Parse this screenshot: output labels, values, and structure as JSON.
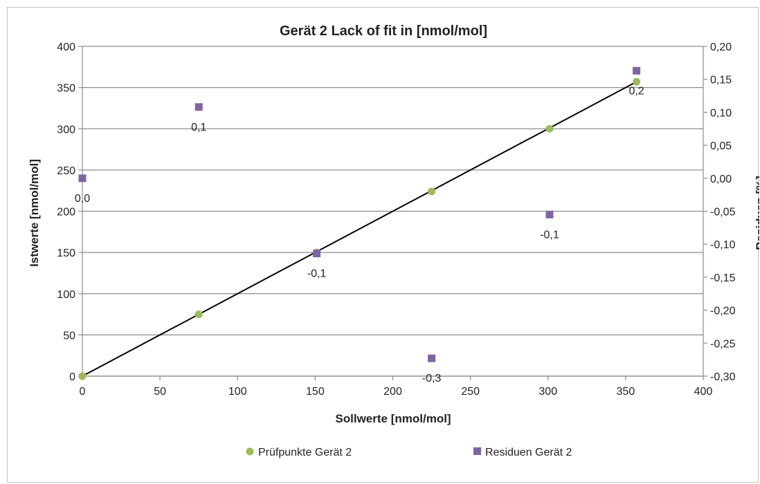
{
  "chart_data": {
    "type": "scatter",
    "title": "Gerät 2  Lack of fit in [nmol/mol]",
    "xlabel": "Sollwerte [nmol/mol]",
    "ylabel": "Istwerte [nmol/mol]",
    "y2label": "Residuen [%]",
    "xlim": [
      0,
      400
    ],
    "ylim": [
      0,
      400
    ],
    "y2lim": [
      -0.3,
      0.2
    ],
    "x_ticks": [
      "0",
      "50",
      "100",
      "150",
      "200",
      "250",
      "300",
      "350",
      "400"
    ],
    "y_ticks": [
      "0",
      "50",
      "100",
      "150",
      "200",
      "250",
      "300",
      "350",
      "400"
    ],
    "y2_ticks": [
      "-0,30",
      "-0,25",
      "-0,20",
      "-0,15",
      "-0,10",
      "-0,05",
      "0,00",
      "0,05",
      "0,10",
      "0,15",
      "0,20"
    ],
    "grid": "horizontal",
    "legend_position": "bottom",
    "series": [
      {
        "name": "Prüfpunkte Gerät 2",
        "axis": "left",
        "marker": "circle",
        "color": "#9bbb59",
        "x": [
          0,
          75,
          151,
          225,
          301,
          357
        ],
        "y": [
          0,
          75,
          150,
          224,
          300,
          357
        ]
      },
      {
        "name": "Residuen Gerät 2",
        "axis": "right",
        "marker": "square",
        "color": "#8064a2",
        "x": [
          0,
          75,
          151,
          225,
          301,
          357
        ],
        "y": [
          0.0,
          0.108,
          -0.114,
          -0.273,
          -0.055,
          0.163
        ],
        "labels": [
          "0,0",
          "0,1",
          "-0,1",
          "-0,3",
          "-0,1",
          "0,2"
        ]
      }
    ],
    "trendline": {
      "color": "#000000",
      "x": [
        0,
        357
      ],
      "y": [
        0,
        357
      ]
    }
  }
}
